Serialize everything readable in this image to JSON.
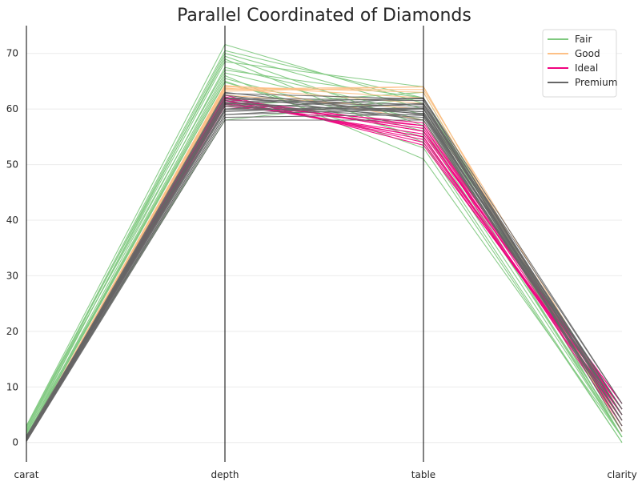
{
  "chart_data": {
    "type": "line",
    "chart_kind": "parallel coordinates",
    "title": "Parallel Coordinated of Diamonds",
    "categories": [
      "carat",
      "depth",
      "table",
      "clarity"
    ],
    "ylim": [
      -3.5,
      75
    ],
    "yticks": [
      0,
      10,
      20,
      30,
      40,
      50,
      60,
      70
    ],
    "grid": true,
    "legend_position": "top-right",
    "series": [
      {
        "name": "Fair",
        "color": "#7fc97f",
        "lines": [
          [
            3.0,
            71.6,
            61.0,
            1
          ],
          [
            2.5,
            70.5,
            62.0,
            2
          ],
          [
            1.5,
            69.5,
            57.0,
            1
          ],
          [
            2.0,
            68.5,
            64.0,
            2
          ],
          [
            1.2,
            67.5,
            59.0,
            3
          ],
          [
            1.0,
            66.5,
            58.0,
            1
          ],
          [
            0.9,
            65.5,
            56.0,
            2
          ],
          [
            1.8,
            64.8,
            55.0,
            1
          ],
          [
            1.0,
            65.0,
            53.0,
            0
          ],
          [
            0.8,
            66.0,
            51.0,
            1
          ],
          [
            2.2,
            70.0,
            60.0,
            3
          ],
          [
            0.7,
            58.0,
            62.0,
            4
          ],
          [
            1.1,
            60.5,
            63.0,
            2
          ],
          [
            3.0,
            69.0,
            54.0,
            0
          ],
          [
            2.8,
            67.0,
            62.0,
            1
          ]
        ]
      },
      {
        "name": "Good",
        "color": "#fdc086",
        "lines": [
          [
            0.5,
            64.0,
            63.0,
            3
          ],
          [
            0.4,
            63.6,
            64.0,
            2
          ],
          [
            0.6,
            64.2,
            62.0,
            4
          ],
          [
            0.3,
            63.5,
            63.5,
            5
          ],
          [
            0.7,
            63.8,
            61.0,
            3
          ],
          [
            0.5,
            63.2,
            64.0,
            2
          ],
          [
            0.4,
            62.5,
            60.0,
            6
          ],
          [
            0.6,
            64.3,
            58.0,
            4
          ]
        ]
      },
      {
        "name": "Ideal",
        "color": "#f0027f",
        "lines": [
          [
            0.3,
            61.5,
            55.0,
            5
          ],
          [
            0.4,
            62.0,
            56.0,
            6
          ],
          [
            0.3,
            61.8,
            57.0,
            4
          ],
          [
            0.5,
            62.2,
            54.0,
            5
          ],
          [
            0.3,
            61.0,
            55.5,
            7
          ],
          [
            0.4,
            61.5,
            56.5,
            3
          ],
          [
            0.3,
            62.5,
            53.5,
            6
          ],
          [
            0.5,
            60.8,
            57.5,
            5
          ],
          [
            0.3,
            61.2,
            55.0,
            4
          ],
          [
            0.4,
            62.0,
            56.0,
            7
          ],
          [
            0.6,
            61.6,
            54.5,
            5
          ],
          [
            0.3,
            60.5,
            57.0,
            6
          ]
        ]
      },
      {
        "name": "Premium",
        "color": "#666666",
        "lines": [
          [
            0.2,
            58.0,
            58.0,
            4
          ],
          [
            0.3,
            58.5,
            59.0,
            5
          ],
          [
            0.4,
            59.0,
            60.0,
            6
          ],
          [
            0.5,
            59.5,
            61.0,
            3
          ],
          [
            0.6,
            60.0,
            62.0,
            7
          ],
          [
            0.7,
            60.5,
            58.5,
            4
          ],
          [
            0.8,
            61.0,
            59.5,
            5
          ],
          [
            0.3,
            61.5,
            60.5,
            6
          ],
          [
            0.4,
            62.0,
            61.5,
            2
          ],
          [
            0.5,
            62.5,
            58.0,
            5
          ],
          [
            0.6,
            63.0,
            59.0,
            6
          ],
          [
            0.9,
            61.0,
            62.0,
            4
          ],
          [
            1.0,
            60.0,
            60.0,
            3
          ],
          [
            0.3,
            59.0,
            61.0,
            7
          ],
          [
            0.4,
            62.0,
            59.5,
            5
          ],
          [
            0.5,
            61.8,
            60.8,
            6
          ],
          [
            0.7,
            60.8,
            58.8,
            4
          ],
          [
            0.2,
            62.8,
            61.8,
            5
          ],
          [
            1.2,
            61.2,
            59.2,
            6
          ],
          [
            0.6,
            59.8,
            60.2,
            5
          ]
        ]
      }
    ]
  }
}
